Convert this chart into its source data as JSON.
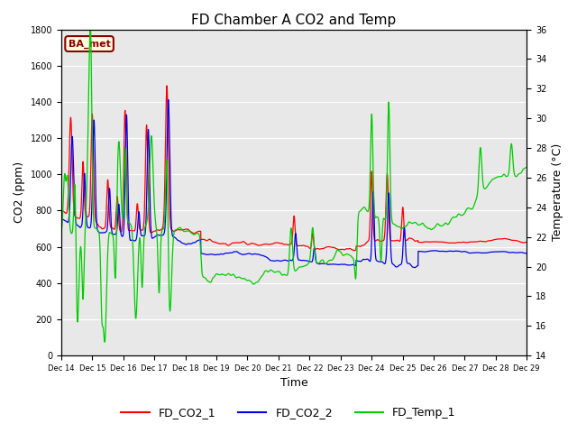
{
  "title": "FD Chamber A CO2 and Temp",
  "xlabel": "Time",
  "ylabel_left": "CO2 (ppm)",
  "ylabel_right": "Temperature (°C)",
  "annotation": "BA_met",
  "ylim_left": [
    0,
    1800
  ],
  "ylim_right": [
    14,
    36
  ],
  "yticks_left": [
    0,
    200,
    400,
    600,
    800,
    1000,
    1200,
    1400,
    1600,
    1800
  ],
  "yticks_right": [
    14,
    16,
    18,
    20,
    22,
    24,
    26,
    28,
    30,
    32,
    34,
    36
  ],
  "legend": [
    "FD_CO2_1",
    "FD_CO2_2",
    "FD_Temp_1"
  ],
  "legend_colors": [
    "#ff0000",
    "#0000ee",
    "#00cc00"
  ],
  "background_color": "#ffffff",
  "plot_bg_color": "#e8e8e8",
  "title_fontsize": 11,
  "axis_fontsize": 9,
  "tick_fontsize": 7,
  "linewidth": 0.9
}
